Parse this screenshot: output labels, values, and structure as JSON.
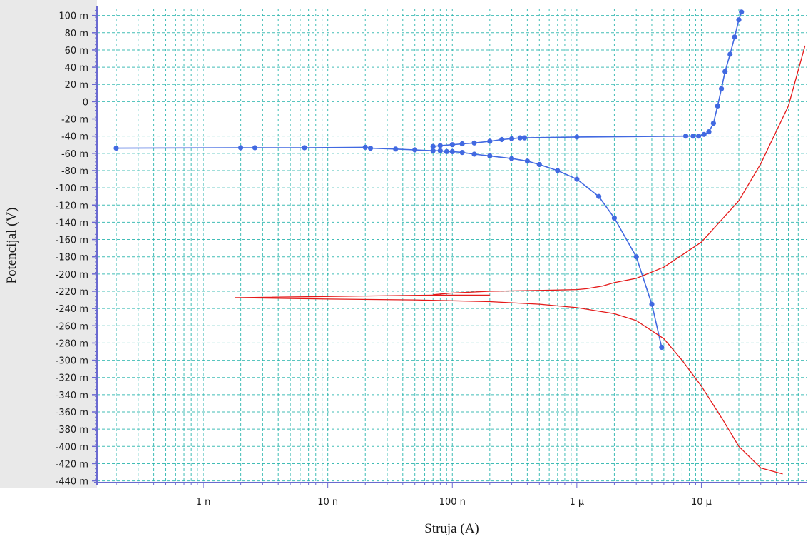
{
  "chart_data": {
    "type": "scatter",
    "title": "",
    "xlabel": "Struja (A)",
    "ylabel": "Potencijal  (V)",
    "x_scale": "log",
    "xlim": [
      1.4e-10,
      7e-05
    ],
    "ylim": [
      -0.442,
      0.108
    ],
    "x_ticks": [
      {
        "value": 1e-09,
        "label": "1 n"
      },
      {
        "value": 1e-08,
        "label": "10 n"
      },
      {
        "value": 1e-07,
        "label": "100 n"
      },
      {
        "value": 1e-06,
        "label": "1 µ"
      },
      {
        "value": 1e-05,
        "label": "10 µ"
      }
    ],
    "y_ticks": [
      {
        "value": 0.1,
        "label": "100 m"
      },
      {
        "value": 0.08,
        "label": "80 m"
      },
      {
        "value": 0.06,
        "label": "60 m"
      },
      {
        "value": 0.04,
        "label": "40 m"
      },
      {
        "value": 0.02,
        "label": "20 m"
      },
      {
        "value": 0.0,
        "label": "0"
      },
      {
        "value": -0.02,
        "label": "-20 m"
      },
      {
        "value": -0.04,
        "label": "-40 m"
      },
      {
        "value": -0.06,
        "label": "-60 m"
      },
      {
        "value": -0.08,
        "label": "-80 m"
      },
      {
        "value": -0.1,
        "label": "-100 m"
      },
      {
        "value": -0.12,
        "label": "-120 m"
      },
      {
        "value": -0.14,
        "label": "-140 m"
      },
      {
        "value": -0.16,
        "label": "-160 m"
      },
      {
        "value": -0.18,
        "label": "-180 m"
      },
      {
        "value": -0.2,
        "label": "-200 m"
      },
      {
        "value": -0.22,
        "label": "-220 m"
      },
      {
        "value": -0.24,
        "label": "-240 m"
      },
      {
        "value": -0.26,
        "label": "-260 m"
      },
      {
        "value": -0.28,
        "label": "-280 m"
      },
      {
        "value": -0.3,
        "label": "-300 m"
      },
      {
        "value": -0.32,
        "label": "-320 m"
      },
      {
        "value": -0.34,
        "label": "-340 m"
      },
      {
        "value": -0.36,
        "label": "-360 m"
      },
      {
        "value": -0.38,
        "label": "-380 m"
      },
      {
        "value": -0.4,
        "label": "-400 m"
      },
      {
        "value": -0.42,
        "label": "-420 m"
      },
      {
        "value": -0.44,
        "label": "-440 m"
      }
    ],
    "grid": true,
    "colors": {
      "blue_series": "#4169e1",
      "red_series": "#e41a1a",
      "grid_major": "#20b2aa",
      "axis": "#6a6ad0",
      "y_axis_band": "#e9e9e9"
    },
    "series": [
      {
        "style": "markers+line",
        "color": "#4169e1",
        "x": [
          2e-10,
          2e-09,
          2.6e-09,
          6.5e-09,
          2e-08,
          2.2e-08,
          3.5e-08,
          5e-08,
          7e-08,
          8e-08,
          9e-08,
          1e-07,
          1.2e-07,
          1.5e-07,
          2e-07,
          3e-07,
          4e-07,
          5e-07,
          7e-07,
          1e-06,
          1.5e-06,
          2e-06,
          3e-06,
          4e-06,
          4.8e-06
        ],
        "y": [
          -0.054,
          -0.0535,
          -0.0535,
          -0.0535,
          -0.053,
          -0.054,
          -0.055,
          -0.056,
          -0.057,
          -0.057,
          -0.058,
          -0.058,
          -0.059,
          -0.061,
          -0.063,
          -0.066,
          -0.069,
          -0.073,
          -0.08,
          -0.09,
          -0.11,
          -0.135,
          -0.18,
          -0.235,
          -0.285
        ]
      },
      {
        "style": "markers+line",
        "color": "#4169e1",
        "x": [
          7e-08,
          8e-08,
          1e-07,
          1.2e-07,
          1.5e-07,
          2e-07,
          2.5e-07,
          3e-07,
          3.5e-07,
          3.8e-07,
          1e-06,
          7.5e-06,
          8.6e-06,
          9.5e-06,
          1.05e-05,
          1.15e-05,
          1.25e-05,
          1.35e-05,
          1.45e-05,
          1.55e-05,
          1.7e-05,
          1.85e-05,
          2e-05,
          2.1e-05
        ],
        "y": [
          -0.052,
          -0.051,
          -0.05,
          -0.049,
          -0.048,
          -0.046,
          -0.044,
          -0.043,
          -0.042,
          -0.042,
          -0.041,
          -0.04,
          -0.04,
          -0.04,
          -0.038,
          -0.035,
          -0.025,
          -0.005,
          0.015,
          0.035,
          0.055,
          0.075,
          0.095,
          0.104
        ]
      },
      {
        "style": "line",
        "color": "#e41a1a",
        "x": [
          1.8e-09,
          1e-08,
          5e-08,
          1e-07,
          2e-07,
          5e-07,
          1e-06,
          2e-06,
          3e-06,
          5e-06,
          7e-06,
          1e-05,
          1.5e-05,
          2e-05,
          3e-05,
          4.5e-05
        ],
        "y": [
          -0.2275,
          -0.229,
          -0.23,
          -0.231,
          -0.232,
          -0.235,
          -0.239,
          -0.246,
          -0.254,
          -0.275,
          -0.3,
          -0.33,
          -0.37,
          -0.4,
          -0.425,
          -0.432
        ]
      },
      {
        "style": "line",
        "color": "#e41a1a",
        "x": [
          1.8e-09,
          2e-08,
          7e-08,
          2e-07
        ],
        "y": [
          -0.2275,
          -0.2255,
          -0.2245,
          -0.2245
        ]
      },
      {
        "style": "line",
        "color": "#e41a1a",
        "x": [
          7e-08,
          1e-07,
          2e-07,
          5e-07,
          1e-06,
          1.2e-06,
          1.6e-06,
          2e-06,
          3e-06,
          5e-06,
          1e-05,
          2e-05,
          3e-05,
          5e-05,
          6.8e-05
        ],
        "y": [
          -0.224,
          -0.222,
          -0.22,
          -0.219,
          -0.218,
          -0.217,
          -0.214,
          -0.21,
          -0.205,
          -0.192,
          -0.163,
          -0.115,
          -0.072,
          -0.005,
          0.065
        ]
      }
    ]
  }
}
